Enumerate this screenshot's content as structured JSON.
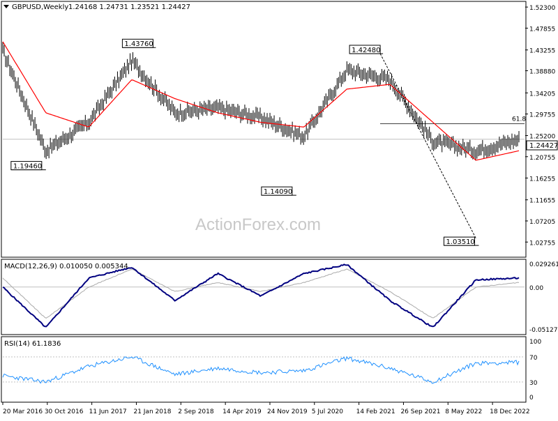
{
  "price_panel": {
    "title": "GBPUSD,Weekly",
    "ohlc": "1.24168 1.24731 1.23521 1.24427",
    "last_price_label": "1.24427",
    "fib_label": "61.8",
    "y_ticks": [
      "1.52300",
      "1.47855",
      "1.43255",
      "1.38880",
      "1.34205",
      "1.29755",
      "1.25200",
      "1.20755",
      "1.16255",
      "1.11655",
      "1.07205",
      "1.02755"
    ],
    "annotations": [
      "1.43760",
      "1.42480",
      "1.19460",
      "1.14090",
      "1.03510"
    ]
  },
  "macd_panel": {
    "title": "MACD(12,26,9) 0.010050 0.005344",
    "y_ticks": [
      "0.029261",
      "0.00",
      "-0.051279"
    ]
  },
  "rsi_panel": {
    "title": "RSI(14) 61.1836",
    "y_ticks": [
      "100",
      "70",
      "30",
      "0"
    ]
  },
  "x_axis": {
    "labels": [
      "20 Mar 2016",
      "30 Oct 2016",
      "11 Jun 2017",
      "21 Jan 2018",
      "2 Sep 2018",
      "14 Apr 2019",
      "24 Nov 2019",
      "5 Jul 2020",
      "14 Feb 2021",
      "26 Sep 2021",
      "8 May 2022",
      "18 Dec 2022"
    ]
  },
  "watermark": "ActionForex.com",
  "colors": {
    "bars": "#000000",
    "moving_average": "#ff0000",
    "macd": "#000080",
    "signal": "#aaaaaa",
    "rsi": "#1e90ff",
    "trendline": "#000000",
    "grid": "#c0c0c0"
  },
  "chart_data": {
    "type": "line",
    "symbol": "GBPUSD",
    "timeframe": "Weekly",
    "x": [
      "2016-03-20",
      "2016-10-30",
      "2017-06-11",
      "2018-01-21",
      "2018-09-02",
      "2019-04-14",
      "2019-11-24",
      "2020-07-05",
      "2021-02-14",
      "2021-09-26",
      "2022-05-08",
      "2022-12-18",
      "2023-04-30"
    ],
    "price": {
      "close": [
        1.43,
        1.22,
        1.28,
        1.41,
        1.3,
        1.31,
        1.29,
        1.25,
        1.39,
        1.37,
        1.24,
        1.22,
        1.244
      ],
      "moving_average": [
        1.45,
        1.3,
        1.27,
        1.37,
        1.33,
        1.3,
        1.28,
        1.27,
        1.35,
        1.36,
        1.28,
        1.2,
        1.22
      ],
      "ylim": [
        1.0,
        1.532
      ],
      "annotated_levels": [
        {
          "label": "1.43760",
          "date": "2018-04-15",
          "value": 1.4376
        },
        {
          "label": "1.42480",
          "date": "2021-06-01",
          "value": 1.4248
        },
        {
          "label": "1.19460",
          "date": "2016-10-09",
          "value": 1.1946
        },
        {
          "label": "1.14090",
          "date": "2020-03-22",
          "value": 1.1409
        },
        {
          "label": "1.03510",
          "date": "2022-09-26",
          "value": 1.0351
        }
      ],
      "fib_618_level": 1.277,
      "last": 1.24427
    },
    "macd": {
      "params": "12,26,9",
      "macd_values": [
        0.0,
        -0.045,
        0.01,
        0.022,
        -0.015,
        0.015,
        -0.01,
        0.015,
        0.025,
        -0.015,
        -0.045,
        0.008,
        0.01
      ],
      "signal_values": [
        0.01,
        -0.035,
        0.0,
        0.02,
        -0.005,
        0.005,
        -0.005,
        0.005,
        0.02,
        -0.005,
        -0.035,
        0.0,
        0.005
      ],
      "last_macd": 0.01005,
      "last_signal": 0.005344,
      "ylim": [
        -0.0513,
        0.0293
      ]
    },
    "rsi": {
      "period": 14,
      "values": [
        40,
        30,
        55,
        70,
        42,
        52,
        45,
        48,
        68,
        52,
        30,
        60,
        61.18
      ],
      "levels": [
        30,
        70
      ],
      "ylim": [
        0,
        100
      ]
    }
  }
}
